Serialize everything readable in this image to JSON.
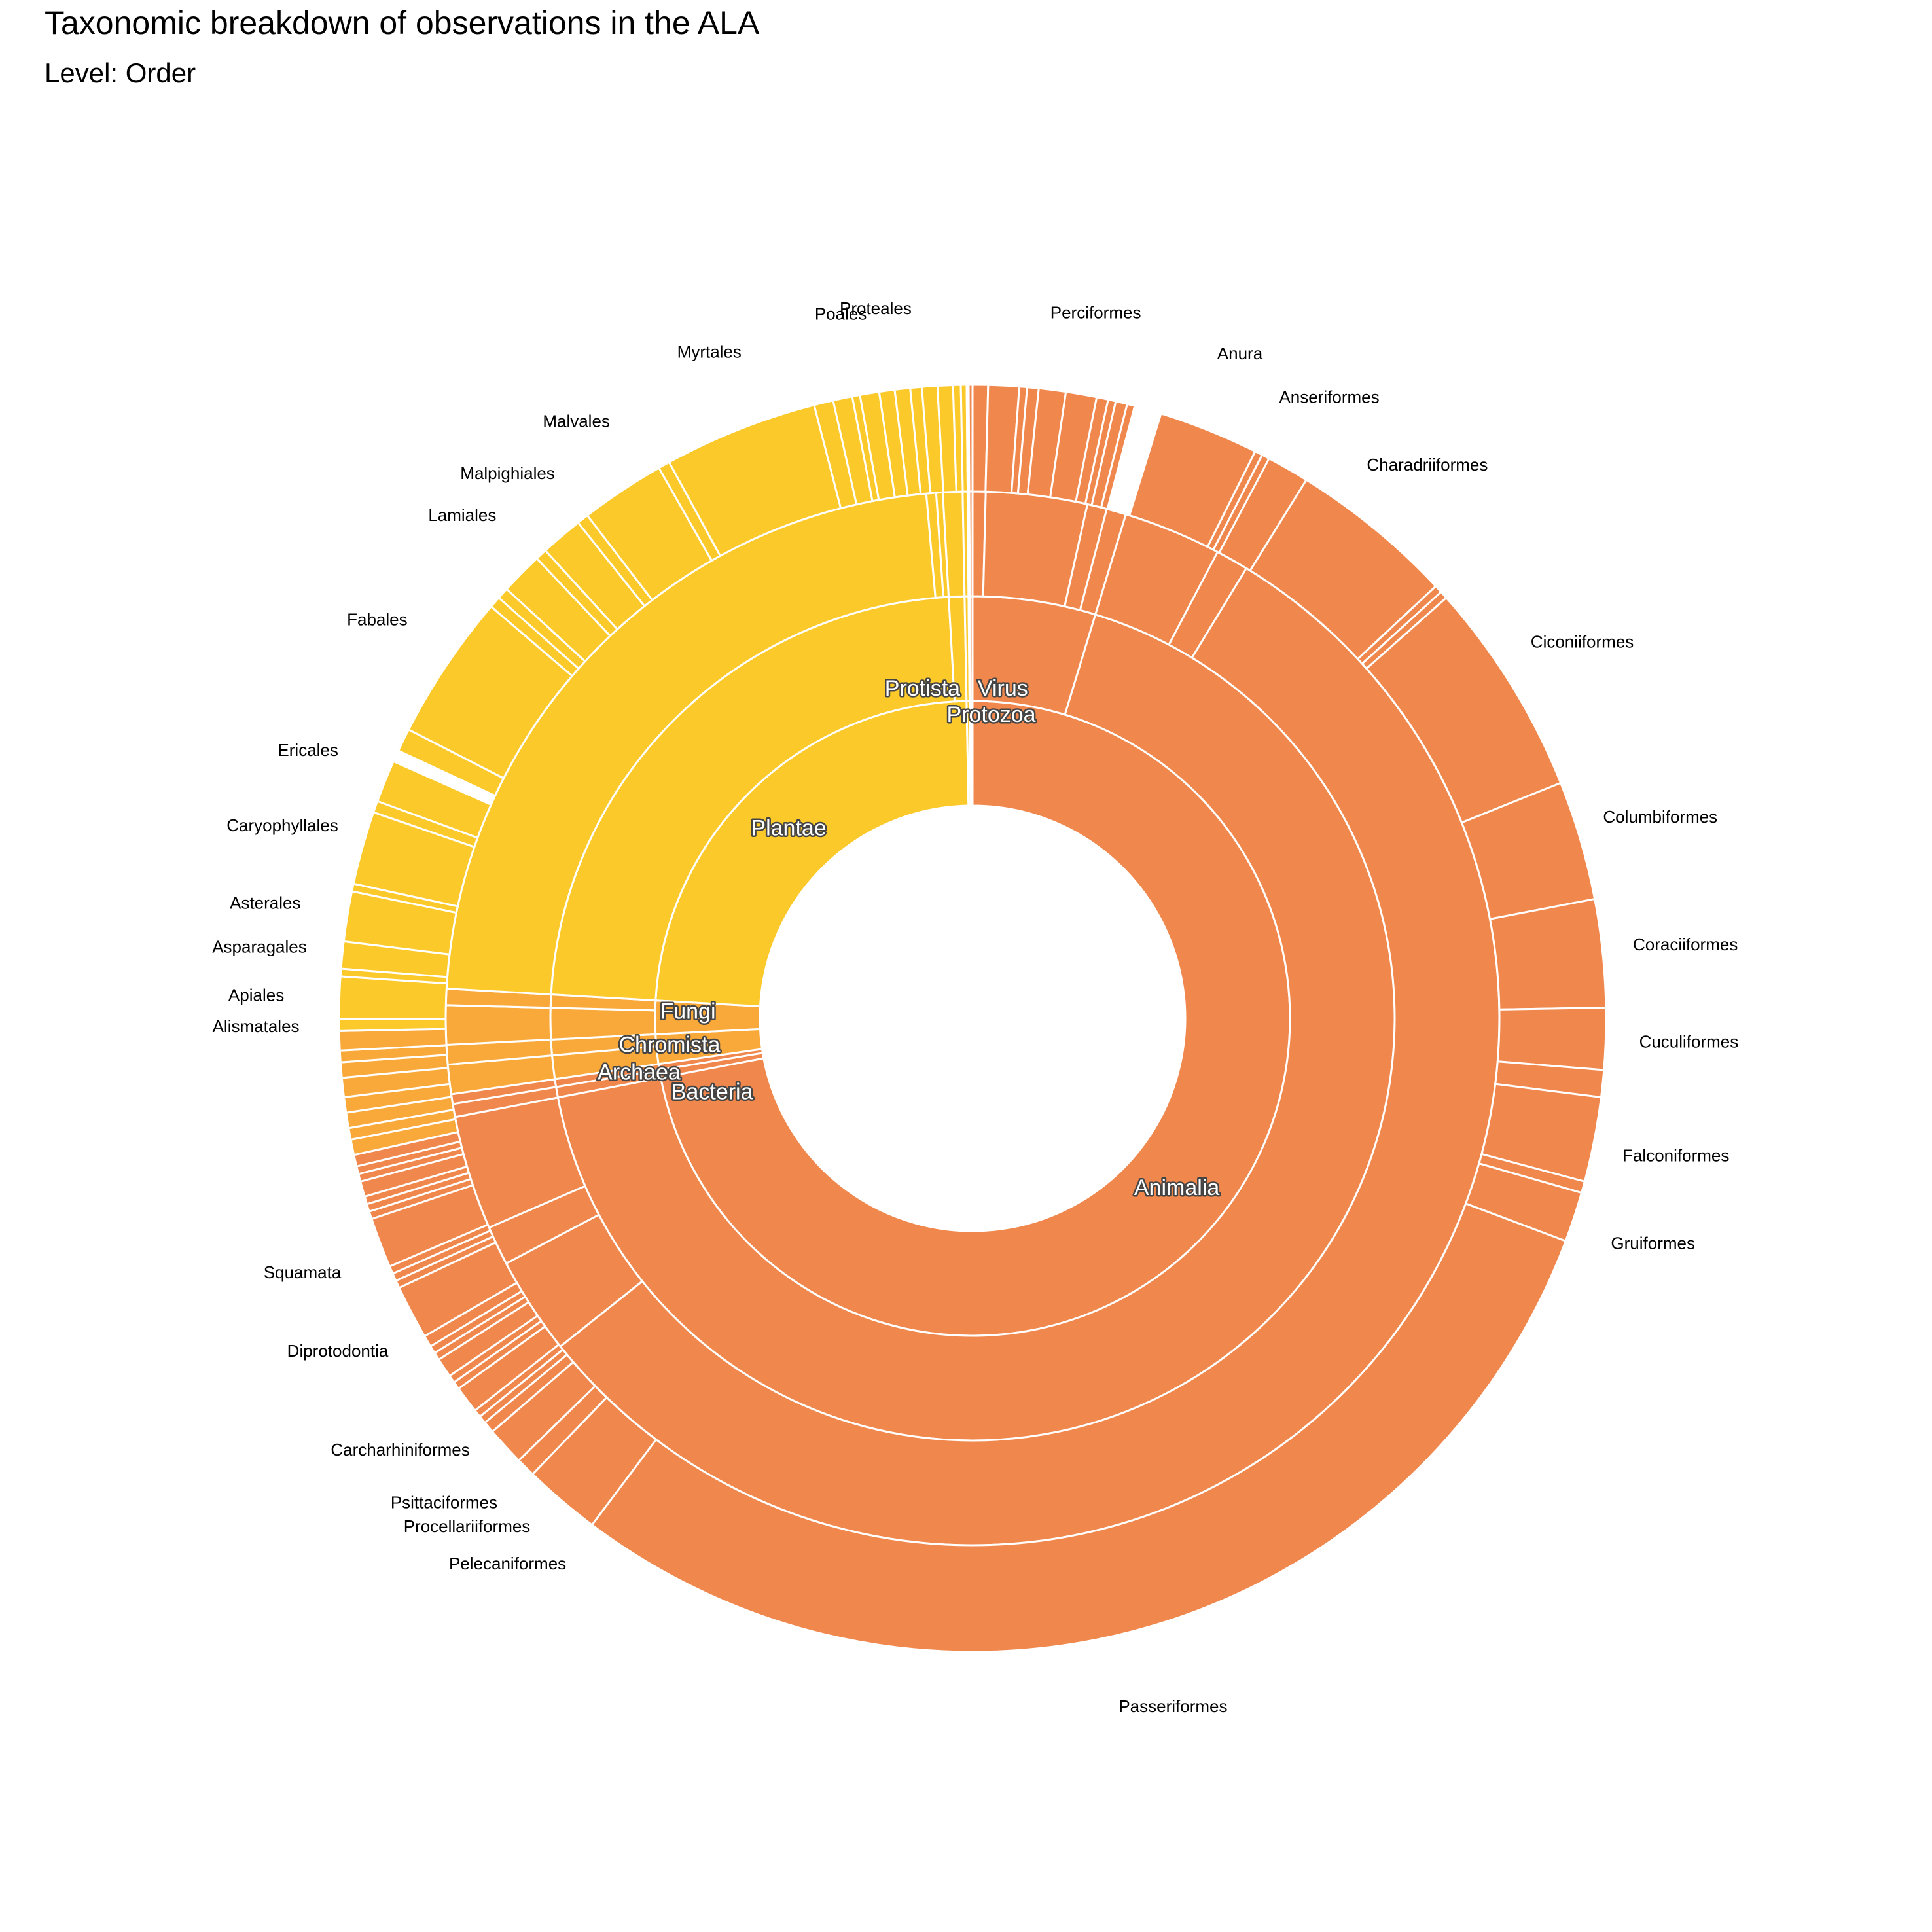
{
  "chart_data": {
    "type": "sunburst",
    "title": "Taxonomic breakdown of observations in the ALA",
    "subtitle": "Level: Order",
    "colors": {
      "Animalia_group": "#F0874D",
      "Plantae_group": "#FBC92A",
      "Fungi_Chromista_group": "#F9A93A",
      "stroke": "#FFFFFF"
    },
    "kingdoms": [
      {
        "name": "Animalia",
        "share": 0.72,
        "color": "#F0874D"
      },
      {
        "name": "Bacteria",
        "share": 0.004,
        "color": "#F0874D"
      },
      {
        "name": "Archaea",
        "share": 0.003,
        "color": "#F0874D"
      },
      {
        "name": "Chromista",
        "share": 0.015,
        "color": "#F9A93A"
      },
      {
        "name": "Fungi",
        "share": 0.017,
        "color": "#F9A93A"
      },
      {
        "name": "Plantae",
        "share": 0.238,
        "color": "#FBC92A"
      },
      {
        "name": "Protista",
        "share": 0.0015,
        "color": "#FBC92A"
      },
      {
        "name": "Virus",
        "share": 0.0005,
        "color": "#F0874D"
      },
      {
        "name": "Protozoa",
        "share": 0.001,
        "color": "#F0874D"
      }
    ],
    "phyla": [
      {
        "kingdom": "Animalia",
        "share": 0.047
      },
      {
        "kingdom": "Animalia",
        "share": 0.673
      },
      {
        "kingdom": "Bacteria",
        "share": 0.004
      },
      {
        "kingdom": "Archaea",
        "share": 0.003
      },
      {
        "kingdom": "Chromista",
        "share": 0.009
      },
      {
        "kingdom": "Chromista",
        "share": 0.006
      },
      {
        "kingdom": "Fungi",
        "share": 0.012
      },
      {
        "kingdom": "Fungi",
        "share": 0.005
      },
      {
        "kingdom": "Plantae",
        "share": 0.232
      },
      {
        "kingdom": "Plantae",
        "share": 0.006
      },
      {
        "kingdom": "Protista",
        "share": 0.0015
      },
      {
        "kingdom": "Virus",
        "share": 0.0005
      },
      {
        "kingdom": "Protozoa",
        "share": 0.001
      }
    ],
    "classes": [
      {
        "kingdom": "Animalia",
        "share": 0.004
      },
      {
        "kingdom": "Animalia",
        "share": 0.031
      },
      {
        "kingdom": "Animalia",
        "share": 0.006
      },
      {
        "kingdom": "Animalia",
        "share": 0.006
      },
      {
        "kingdom": "Animalia",
        "share": 0.03
      },
      {
        "kingdom": "Animalia",
        "share": 0.01
      },
      {
        "kingdom": "Animalia",
        "share": 0.556
      },
      {
        "kingdom": "Animalia",
        "share": 0.03
      },
      {
        "kingdom": "Animalia",
        "share": 0.012
      },
      {
        "kingdom": "Animalia",
        "share": 0.035
      },
      {
        "kingdom": "Bacteria",
        "share": 0.004
      },
      {
        "kingdom": "Archaea",
        "share": 0.003
      },
      {
        "kingdom": "Chromista",
        "share": 0.009
      },
      {
        "kingdom": "Chromista",
        "share": 0.006
      },
      {
        "kingdom": "Fungi",
        "share": 0.012
      },
      {
        "kingdom": "Fungi",
        "share": 0.005
      },
      {
        "kingdom": "Plantae",
        "share": 0.227
      },
      {
        "kingdom": "Plantae",
        "share": 0.003
      },
      {
        "kingdom": "Plantae",
        "share": 0.002
      },
      {
        "kingdom": "Plantae",
        "share": 0.006
      },
      {
        "kingdom": "Protista",
        "share": 0.0015
      },
      {
        "kingdom": "Virus",
        "share": 0.0005
      },
      {
        "kingdom": "Protozoa",
        "share": 0.001
      }
    ],
    "orders": [
      {
        "name": "",
        "kingdom": "Animalia",
        "share": 0.004
      },
      {
        "name": "",
        "kingdom": "Animalia",
        "share": 0.008
      },
      {
        "name": "",
        "kingdom": "Animalia",
        "share": 0.002
      },
      {
        "name": "",
        "kingdom": "Animalia",
        "share": 0.003
      },
      {
        "name": "",
        "kingdom": "Animalia",
        "share": 0.007
      },
      {
        "name": "Perciformes",
        "kingdom": "Animalia",
        "share": 0.008
      },
      {
        "name": "",
        "kingdom": "Animalia",
        "share": 0.003
      },
      {
        "name": "",
        "kingdom": "Animalia",
        "share": 0.002
      },
      {
        "name": "",
        "kingdom": "Animalia",
        "share": 0.003
      },
      {
        "name": "",
        "kingdom": "Animalia",
        "share": 0.002
      },
      {
        "name": "",
        "kingdom": "Animalia",
        "share": 0.007,
        "gap": true
      },
      {
        "name": "Anura",
        "kingdom": "Animalia",
        "share": 0.026
      },
      {
        "name": "",
        "kingdom": "Animalia",
        "share": 0.002
      },
      {
        "name": "",
        "kingdom": "Animalia",
        "share": 0.002
      },
      {
        "name": "Anseriformes",
        "kingdom": "Animalia",
        "share": 0.011
      },
      {
        "name": "Charadriiformes",
        "kingdom": "Animalia",
        "share": 0.043
      },
      {
        "name": "",
        "kingdom": "Animalia",
        "share": 0.002
      },
      {
        "name": "",
        "kingdom": "Animalia",
        "share": 0.002
      },
      {
        "name": "Ciconiiformes",
        "kingdom": "Animalia",
        "share": 0.056
      },
      {
        "name": "Columbiformes",
        "kingdom": "Animalia",
        "share": 0.031
      },
      {
        "name": "Coraciiformes",
        "kingdom": "Animalia",
        "share": 0.028
      },
      {
        "name": "Cuculiformes",
        "kingdom": "Animalia",
        "share": 0.016
      },
      {
        "name": "",
        "kingdom": "Animalia",
        "share": 0.007
      },
      {
        "name": "Falconiformes",
        "kingdom": "Animalia",
        "share": 0.022
      },
      {
        "name": "",
        "kingdom": "Animalia",
        "share": 0.003
      },
      {
        "name": "Gruiformes",
        "kingdom": "Animalia",
        "share": 0.013
      },
      {
        "name": "Passeriformes",
        "kingdom": "Animalia",
        "share": 0.301
      },
      {
        "name": "Pelecaniformes",
        "kingdom": "Animalia",
        "share": 0.02
      },
      {
        "name": "Procellariiformes",
        "kingdom": "Animalia",
        "share": 0.005
      },
      {
        "name": "Psittaciformes",
        "kingdom": "Animalia",
        "share": 0.01
      },
      {
        "name": "",
        "kingdom": "Animalia",
        "share": 0.003
      },
      {
        "name": "",
        "kingdom": "Animalia",
        "share": 0.002
      },
      {
        "name": "",
        "kingdom": "Animalia",
        "share": 0.002
      },
      {
        "name": "Carcharhiniformes",
        "kingdom": "Animalia",
        "share": 0.007
      },
      {
        "name": "",
        "kingdom": "Animalia",
        "share": 0.002
      },
      {
        "name": "",
        "kingdom": "Animalia",
        "share": 0.002
      },
      {
        "name": "",
        "kingdom": "Animalia",
        "share": 0.005
      },
      {
        "name": "",
        "kingdom": "Animalia",
        "share": 0.002
      },
      {
        "name": "",
        "kingdom": "Animalia",
        "share": 0.002
      },
      {
        "name": "",
        "kingdom": "Animalia",
        "share": 0.003
      },
      {
        "name": "Diprotodontia",
        "kingdom": "Animalia",
        "share": 0.014
      },
      {
        "name": "",
        "kingdom": "Animalia",
        "share": 0.002
      },
      {
        "name": "",
        "kingdom": "Animalia",
        "share": 0.002
      },
      {
        "name": "",
        "kingdom": "Animalia",
        "share": 0.002
      },
      {
        "name": "Squamata",
        "kingdom": "Animalia",
        "share": 0.013
      },
      {
        "name": "",
        "kingdom": "Animalia",
        "share": 0.002
      },
      {
        "name": "",
        "kingdom": "Animalia",
        "share": 0.002
      },
      {
        "name": "",
        "kingdom": "Animalia",
        "share": 0.002
      },
      {
        "name": "",
        "kingdom": "Animalia",
        "share": 0.004
      },
      {
        "name": "",
        "kingdom": "Bacteria",
        "share": 0.002
      },
      {
        "name": "",
        "kingdom": "Bacteria",
        "share": 0.002
      },
      {
        "name": "",
        "kingdom": "Archaea",
        "share": 0.003
      },
      {
        "name": "",
        "kingdom": "Chromista",
        "share": 0.004
      },
      {
        "name": "",
        "kingdom": "Chromista",
        "share": 0.003
      },
      {
        "name": "",
        "kingdom": "Chromista",
        "share": 0.004
      },
      {
        "name": "",
        "kingdom": "Chromista",
        "share": 0.004
      },
      {
        "name": "",
        "kingdom": "Fungi",
        "share": 0.005
      },
      {
        "name": "",
        "kingdom": "Fungi",
        "share": 0.004
      },
      {
        "name": "",
        "kingdom": "Fungi",
        "share": 0.003
      },
      {
        "name": "",
        "kingdom": "Fungi",
        "share": 0.005
      },
      {
        "name": "Alismatales",
        "kingdom": "Plantae",
        "share": 0.003
      },
      {
        "name": "Apiales",
        "kingdom": "Plantae",
        "share": 0.011
      },
      {
        "name": "",
        "kingdom": "Plantae",
        "share": 0.002
      },
      {
        "name": "Asparagales",
        "kingdom": "Plantae",
        "share": 0.007
      },
      {
        "name": "Asterales",
        "kingdom": "Plantae",
        "share": 0.013
      },
      {
        "name": "",
        "kingdom": "Plantae",
        "share": 0.002
      },
      {
        "name": "Caryophyllales",
        "kingdom": "Plantae",
        "share": 0.019
      },
      {
        "name": "",
        "kingdom": "Plantae",
        "share": 0.003
      },
      {
        "name": "Ericales",
        "kingdom": "Plantae",
        "share": 0.011
      },
      {
        "name": "",
        "kingdom": "Plantae",
        "share": 0.003,
        "gap": true
      },
      {
        "name": "",
        "kingdom": "Plantae",
        "share": 0.006
      },
      {
        "name": "Fabales",
        "kingdom": "Plantae",
        "share": 0.038
      },
      {
        "name": "",
        "kingdom": "Plantae",
        "share": 0.003
      },
      {
        "name": "",
        "kingdom": "Plantae",
        "share": 0.003
      },
      {
        "name": "Lamiales",
        "kingdom": "Plantae",
        "share": 0.011
      },
      {
        "name": "",
        "kingdom": "Plantae",
        "share": 0.003
      },
      {
        "name": "Malpighiales",
        "kingdom": "Plantae",
        "share": 0.011
      },
      {
        "name": "",
        "kingdom": "Plantae",
        "share": 0.003
      },
      {
        "name": "Malvales",
        "kingdom": "Plantae",
        "share": 0.022
      },
      {
        "name": "",
        "kingdom": "Plantae",
        "share": 0.003
      },
      {
        "name": "Myrtales",
        "kingdom": "Plantae",
        "share": 0.04
      },
      {
        "name": "",
        "kingdom": "Plantae",
        "share": 0.005
      },
      {
        "name": "",
        "kingdom": "Plantae",
        "share": 0.005
      },
      {
        "name": "Poales",
        "kingdom": "Plantae",
        "share": 0.002
      },
      {
        "name": "",
        "kingdom": "Plantae",
        "share": 0.005
      },
      {
        "name": "Proteales",
        "kingdom": "Plantae",
        "share": 0.004
      },
      {
        "name": "",
        "kingdom": "Plantae",
        "share": 0.004
      },
      {
        "name": "",
        "kingdom": "Plantae",
        "share": 0.003
      },
      {
        "name": "",
        "kingdom": "Plantae",
        "share": 0.004
      },
      {
        "name": "",
        "kingdom": "Plantae",
        "share": 0.004
      },
      {
        "name": "",
        "kingdom": "Plantae",
        "share": 0.002
      },
      {
        "name": "",
        "kingdom": "Protista",
        "share": 0.0015
      },
      {
        "name": "",
        "kingdom": "Virus",
        "share": 0.0005,
        "gap": true
      },
      {
        "name": "",
        "kingdom": "Protozoa",
        "share": 0.001
      }
    ]
  }
}
